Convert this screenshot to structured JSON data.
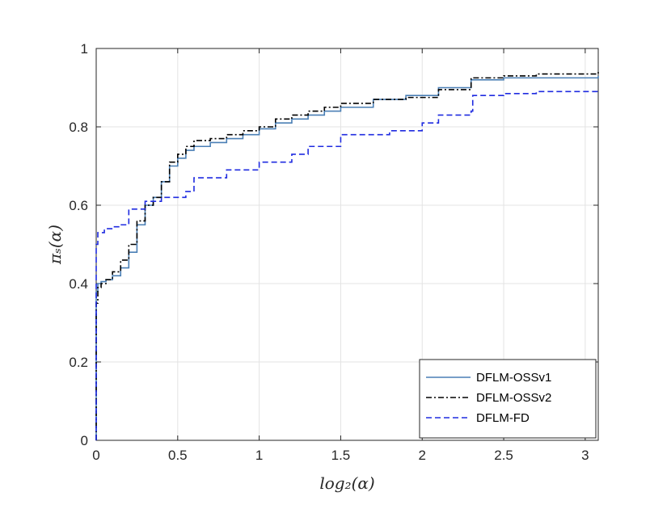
{
  "chart_data": {
    "type": "line",
    "title": "",
    "xlabel": "log₂(α)",
    "ylabel": "πₛ(α)",
    "xlim": [
      0,
      3.08
    ],
    "ylim": [
      0,
      1
    ],
    "xticks": [
      0,
      0.5,
      1,
      1.5,
      2,
      2.5,
      3
    ],
    "yticks": [
      0,
      0.2,
      0.4,
      0.6,
      0.8,
      1
    ],
    "xtick_labels": [
      "0",
      "0.5",
      "1",
      "1.5",
      "2",
      "2.5",
      "3"
    ],
    "ytick_labels": [
      "0",
      "0.2",
      "0.4",
      "0.6",
      "0.8",
      "1"
    ],
    "grid": true,
    "legend_position": "bottom-right",
    "series": [
      {
        "name": "DFLM-OSSv1",
        "color": "#4a7fb5",
        "style": "solid",
        "x": [
          0,
          0,
          0.01,
          0.03,
          0.06,
          0.1,
          0.15,
          0.2,
          0.25,
          0.3,
          0.35,
          0.4,
          0.45,
          0.5,
          0.55,
          0.6,
          0.7,
          0.8,
          0.9,
          1.0,
          1.1,
          1.2,
          1.3,
          1.4,
          1.5,
          1.7,
          1.9,
          2.1,
          2.3,
          2.5,
          2.7,
          3.08
        ],
        "y": [
          0,
          0.38,
          0.4,
          0.405,
          0.41,
          0.42,
          0.44,
          0.48,
          0.55,
          0.6,
          0.62,
          0.66,
          0.7,
          0.72,
          0.74,
          0.75,
          0.76,
          0.77,
          0.78,
          0.795,
          0.81,
          0.82,
          0.83,
          0.84,
          0.85,
          0.87,
          0.88,
          0.9,
          0.92,
          0.925,
          0.925,
          0.93
        ]
      },
      {
        "name": "DFLM-OSSv2",
        "color": "#000000",
        "style": "dashdot",
        "x": [
          0,
          0,
          0.01,
          0.03,
          0.06,
          0.1,
          0.15,
          0.2,
          0.25,
          0.3,
          0.35,
          0.4,
          0.45,
          0.5,
          0.55,
          0.6,
          0.7,
          0.8,
          0.9,
          1.0,
          1.1,
          1.2,
          1.3,
          1.4,
          1.5,
          1.7,
          1.9,
          2.1,
          2.3,
          2.5,
          2.7,
          3.08
        ],
        "y": [
          0,
          0.35,
          0.39,
          0.4,
          0.41,
          0.43,
          0.46,
          0.5,
          0.56,
          0.6,
          0.62,
          0.66,
          0.71,
          0.73,
          0.75,
          0.765,
          0.77,
          0.78,
          0.79,
          0.8,
          0.82,
          0.83,
          0.84,
          0.85,
          0.86,
          0.87,
          0.875,
          0.895,
          0.925,
          0.93,
          0.935,
          0.94
        ]
      },
      {
        "name": "DFLM-FD",
        "color": "#1f2be0",
        "style": "dashed",
        "x": [
          0,
          0,
          0.01,
          0.05,
          0.1,
          0.15,
          0.2,
          0.3,
          0.4,
          0.55,
          0.6,
          0.8,
          1.0,
          1.2,
          1.3,
          1.5,
          1.8,
          2.0,
          2.1,
          2.3,
          2.31,
          2.5,
          2.7,
          3.08
        ],
        "y": [
          0,
          0.5,
          0.53,
          0.54,
          0.545,
          0.55,
          0.59,
          0.61,
          0.62,
          0.635,
          0.67,
          0.69,
          0.71,
          0.73,
          0.75,
          0.78,
          0.79,
          0.81,
          0.83,
          0.84,
          0.88,
          0.885,
          0.89,
          0.89
        ]
      }
    ]
  }
}
